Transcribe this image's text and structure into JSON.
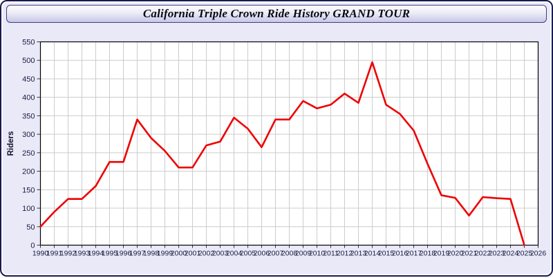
{
  "window": {
    "title": "California Triple Crown Ride History GRAND TOUR"
  },
  "colors": {
    "window_border": "#191950",
    "panel_background": "#e9e9f8",
    "titlebar_gradient_top": "#fdfdfe",
    "titlebar_gradient_bottom": "#c7c7e7",
    "plot_background": "#ffffff",
    "plot_border": "#000000",
    "grid": "#cccccc",
    "tick": "#333333",
    "tick_label": "#1a1a3f",
    "line": "#ee0000"
  },
  "chart_data": {
    "type": "line",
    "title": "California Triple Crown Ride History GRAND TOUR",
    "xlabel": "",
    "ylabel": "Riders",
    "grid": true,
    "legend": "none",
    "xlim": [
      1990,
      2026
    ],
    "ylim": [
      0,
      550
    ],
    "xtick_labels": [
      "1990",
      "1991",
      "1992",
      "1993",
      "1994",
      "1995",
      "1996",
      "1997",
      "1998",
      "1999",
      "2000",
      "2001",
      "2002",
      "2003",
      "2004",
      "2005",
      "2006",
      "2007",
      "2008",
      "2009",
      "2010",
      "2011",
      "2012",
      "2013",
      "2014",
      "2015",
      "2016",
      "2017",
      "2018",
      "2019",
      "2020",
      "2021",
      "2022",
      "2023",
      "2024",
      "2025",
      "2026"
    ],
    "ytick_labels": [
      "0",
      "50",
      "100",
      "150",
      "200",
      "250",
      "300",
      "350",
      "400",
      "450",
      "500",
      "550"
    ],
    "x": [
      1990,
      1991,
      1992,
      1993,
      1994,
      1995,
      1996,
      1997,
      1998,
      1999,
      2000,
      2001,
      2002,
      2003,
      2004,
      2005,
      2006,
      2007,
      2008,
      2009,
      2010,
      2011,
      2012,
      2013,
      2014,
      2015,
      2016,
      2017,
      2018,
      2019,
      2020,
      2021,
      2022,
      2023,
      2024,
      2025
    ],
    "values": [
      50,
      90,
      125,
      125,
      160,
      225,
      225,
      340,
      290,
      255,
      210,
      210,
      270,
      280,
      345,
      315,
      265,
      340,
      340,
      390,
      370,
      380,
      410,
      385,
      495,
      380,
      355,
      310,
      220,
      135,
      128,
      80,
      130,
      127,
      125,
      0
    ]
  }
}
